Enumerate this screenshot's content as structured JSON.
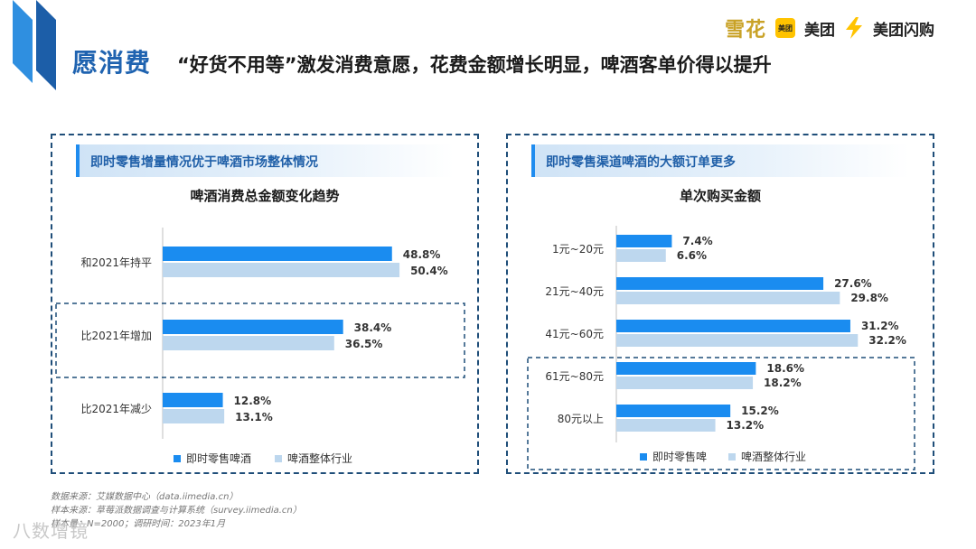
{
  "header": {
    "section_title": "愿消费",
    "headline": "“好货不用等”激发消费意愿，花费金额增长明显，啤酒客单价得以提升"
  },
  "brands": {
    "snow": "雪花",
    "meituan_badge": "美团",
    "meituan": "美团",
    "meituan_flash": "美团闪购"
  },
  "colors": {
    "series1": "#1a8cf0",
    "series2": "#bdd7ee",
    "frame": "#1f4e79"
  },
  "left_panel": {
    "banner": "即时零售增量情况优于啤酒市场整体情况"
  },
  "right_panel": {
    "banner": "即时零售渠道啤酒的大额订单更多"
  },
  "chart_data": [
    {
      "type": "bar",
      "orientation": "horizontal",
      "title": "啤酒消费总金额变化趋势",
      "categories": [
        "和2021年持平",
        "比2021年增加",
        "比2021年减少"
      ],
      "series": [
        {
          "name": "即时零售啤酒",
          "values": [
            48.8,
            38.4,
            12.8
          ]
        },
        {
          "name": "啤酒整体行业",
          "values": [
            50.4,
            36.5,
            13.1
          ]
        }
      ],
      "value_suffix": "%",
      "xlim": [
        0,
        60
      ],
      "highlighted_categories": [
        "比2021年增加"
      ]
    },
    {
      "type": "bar",
      "orientation": "horizontal",
      "title": "单次购买金额",
      "categories": [
        "1元~20元",
        "21元~40元",
        "41元~60元",
        "61元~80元",
        "80元以上"
      ],
      "series": [
        {
          "name": "即时零售啤",
          "values": [
            7.4,
            27.6,
            31.2,
            18.6,
            15.2
          ]
        },
        {
          "name": "啤酒整体行业",
          "values": [
            6.6,
            29.8,
            32.2,
            18.2,
            13.2
          ]
        }
      ],
      "value_suffix": "%",
      "xlim": [
        0,
        40
      ],
      "highlighted_categories": [
        "61元~80元",
        "80元以上"
      ]
    }
  ],
  "footer": {
    "source_1": "数据来源：艾媒数据中心（data.iimedia.cn）",
    "source_2": "样本来源：草莓派数据调查与计算系统（survey.iimedia.cn）",
    "source_3": "样本量：N=2000；调研时间：2023年1月",
    "watermark": "八数增镜"
  }
}
